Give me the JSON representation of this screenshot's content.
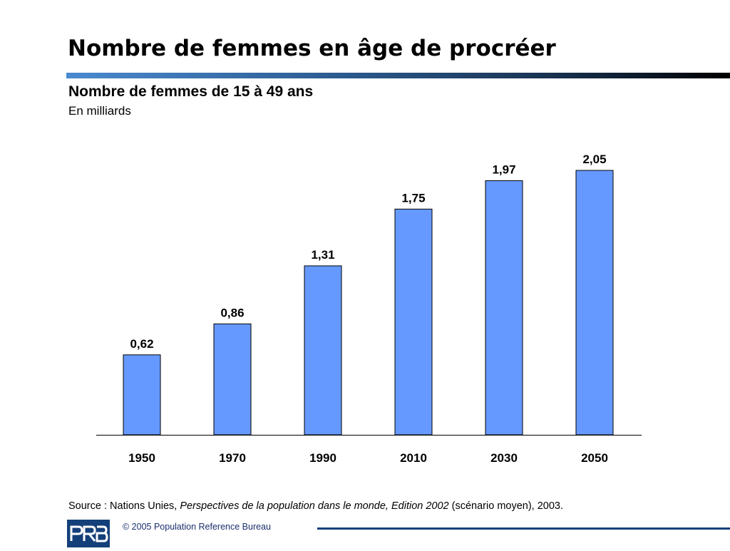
{
  "slide": {
    "title": "Nombre de femmes en âge de procréer"
  },
  "chart_data": {
    "type": "bar",
    "title": "Nombre de femmes de 15 à 49 ans",
    "subtitle": "En milliards",
    "categories": [
      "1950",
      "1970",
      "1990",
      "2010",
      "2030",
      "2050"
    ],
    "values": [
      0.62,
      0.86,
      1.31,
      1.75,
      1.97,
      2.05
    ],
    "value_labels": [
      "0,62",
      "0,86",
      "1,31",
      "1,75",
      "1,97",
      "2,05"
    ],
    "ylim": [
      0,
      2.1
    ],
    "grid": false,
    "legend": "none",
    "bar_color": "#6699ff"
  },
  "source": {
    "prefix": "Source : Nations Unies, ",
    "italic": "Perspectives de la population dans le monde, Edition 2002",
    "suffix": " (scénario moyen), 2003."
  },
  "footer": {
    "logo_text": "PRB",
    "copyright": "© 2005 Population Reference Bureau",
    "brand_color": "#14407a"
  }
}
